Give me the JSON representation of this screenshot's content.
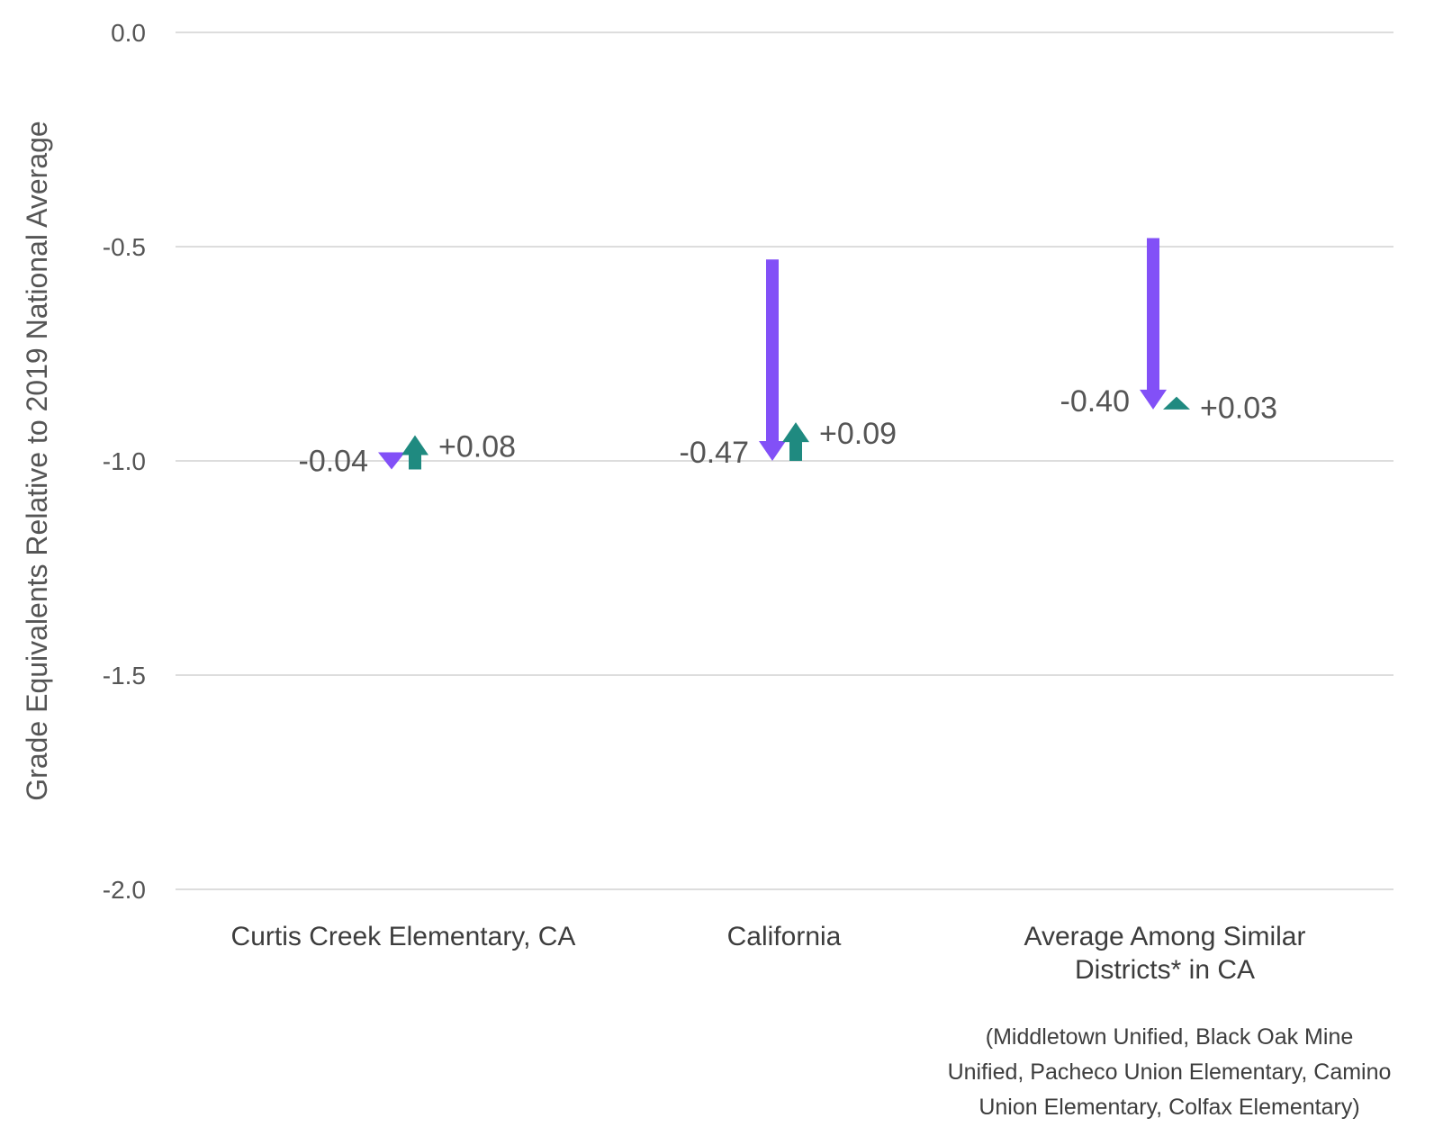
{
  "chart_data": {
    "type": "arrow",
    "ylabel": "Grade Equivalents Relative to 2019 National Average",
    "ylim": [
      -2.0,
      0.0
    ],
    "yticks": [
      0.0,
      -0.5,
      -1.0,
      -1.5,
      -2.0
    ],
    "ytick_labels": [
      "0.0",
      "-0.5",
      "-1.0",
      "-1.5",
      "-2.0"
    ],
    "grid": true,
    "colors": {
      "decline": "#8250f7",
      "recovery": "#1f8a80",
      "gridline": "#dddddd",
      "text": "#555555"
    },
    "categories": [
      {
        "label_lines": [
          "Curtis Creek Elementary, CA"
        ],
        "note_lines": [],
        "start_2019": -0.98,
        "value_2022": -1.02,
        "value_2023": -0.94,
        "change_2019_2022": "-0.04",
        "change_2022_2023": "+0.08"
      },
      {
        "label_lines": [
          "California"
        ],
        "note_lines": [],
        "start_2019": -0.53,
        "value_2022": -1.0,
        "value_2023": -0.91,
        "change_2019_2022": "-0.47",
        "change_2022_2023": "+0.09"
      },
      {
        "label_lines": [
          "Average Among Similar",
          "Districts* in CA"
        ],
        "note_lines": [
          "(Middletown Unified, Black Oak Mine",
          "Unified, Pacheco Union Elementary, Camino",
          "Union Elementary, Colfax Elementary)"
        ],
        "start_2019": -0.48,
        "value_2022": -0.88,
        "value_2023": -0.85,
        "change_2019_2022": "-0.40",
        "change_2022_2023": "+0.03"
      }
    ]
  }
}
